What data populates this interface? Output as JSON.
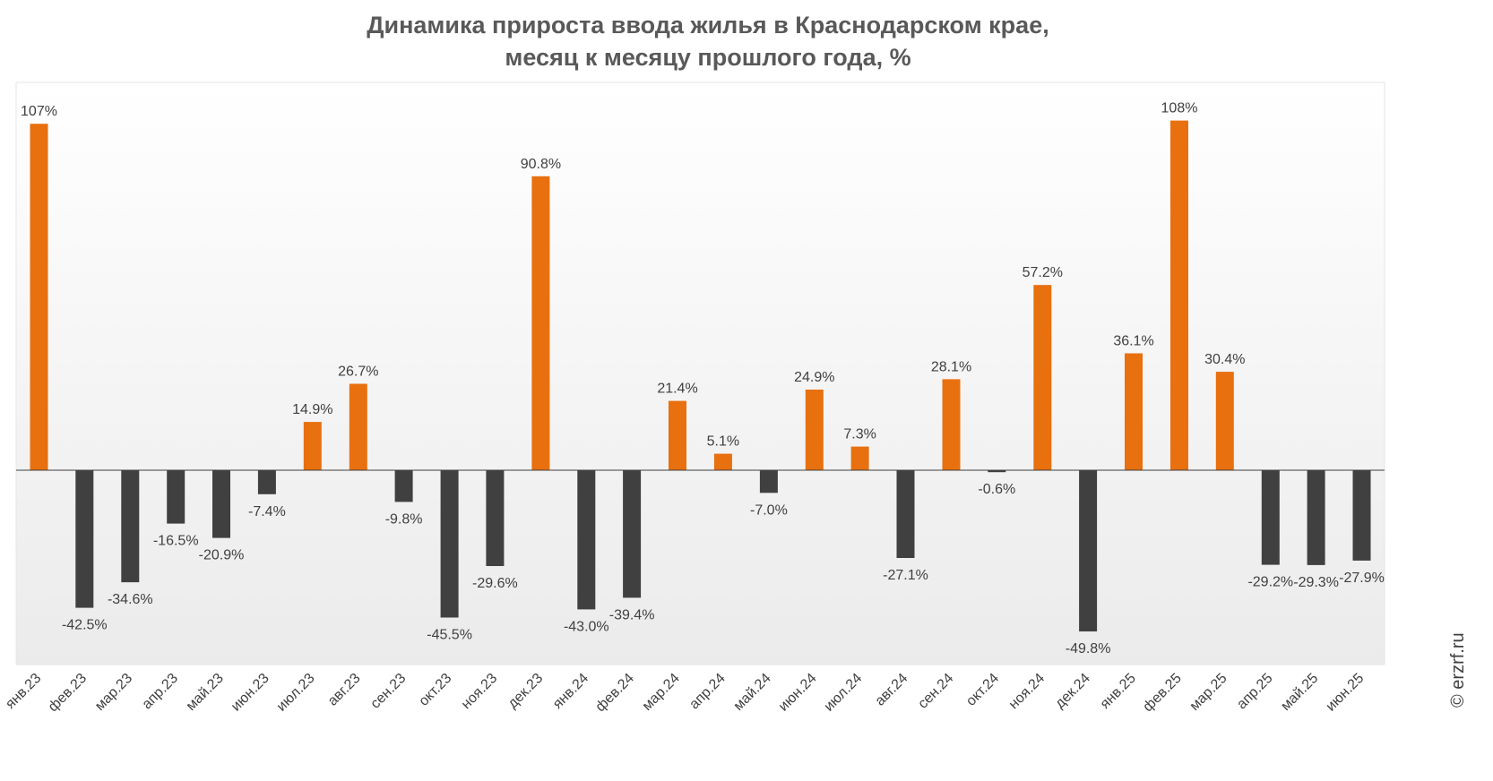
{
  "chart_data": {
    "type": "bar",
    "title_lines": [
      "Динамика прироста ввода жилья в Краснодарском крае,",
      "месяц к месяцу прошлого года, %"
    ],
    "categories": [
      "янв.23",
      "фев.23",
      "мар.23",
      "апр.23",
      "май.23",
      "июн.23",
      "июл.23",
      "авг.23",
      "сен.23",
      "окт.23",
      "ноя.23",
      "дек.23",
      "янв.24",
      "фев.24",
      "мар.24",
      "апр.24",
      "май.24",
      "июн.24",
      "июл.24",
      "авг.24",
      "сен.24",
      "окт.24",
      "ноя.24",
      "дек.24",
      "янв.25",
      "фев.25",
      "мар.25",
      "апр.25",
      "май.25",
      "июн.25"
    ],
    "values": [
      107,
      -42.5,
      -34.6,
      -16.5,
      -20.9,
      -7.4,
      14.9,
      26.7,
      -9.8,
      -45.5,
      -29.6,
      90.8,
      -43.0,
      -39.4,
      21.4,
      5.1,
      -7.0,
      24.9,
      7.3,
      -27.1,
      28.1,
      -0.6,
      57.2,
      -49.8,
      36.1,
      108,
      30.4,
      -29.2,
      -29.3,
      -27.9
    ],
    "labels": [
      "107%",
      "-42.5%",
      "-34.6%",
      "-16.5%",
      "-20.9%",
      "-7.4%",
      "14.9%",
      "26.7%",
      "-9.8%",
      "-45.5%",
      "-29.6%",
      "90.8%",
      "-43.0%",
      "-39.4%",
      "21.4%",
      "5.1%",
      "-7.0%",
      "24.9%",
      "7.3%",
      "-27.1%",
      "28.1%",
      "-0.6%",
      "57.2%",
      "-49.8%",
      "36.1%",
      "108%",
      "30.4%",
      "-29.2%",
      "-29.3%",
      "-27.9%"
    ],
    "xlabel": "",
    "ylabel": "",
    "ylim": [
      -60,
      120
    ],
    "grid": false,
    "colors": {
      "positive": "#E8700F",
      "negative": "#404040",
      "label": "#404040",
      "axis": "#404040"
    }
  },
  "watermark": "© erzrf.ru"
}
